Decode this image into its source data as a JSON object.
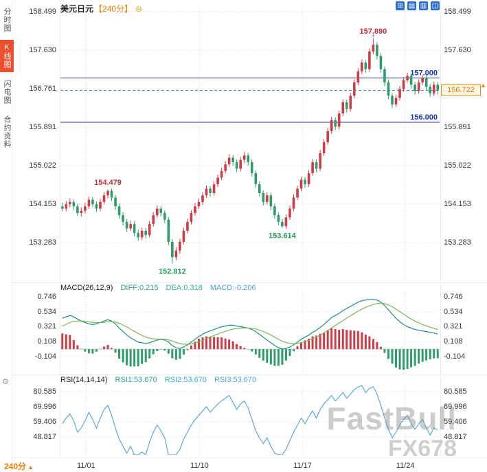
{
  "sidebar": {
    "items": [
      {
        "label": "分时图",
        "active": false
      },
      {
        "label": "K线图",
        "active": true
      },
      {
        "label": "闪电图",
        "active": false
      },
      {
        "label": "合约资料",
        "active": false
      }
    ]
  },
  "header": {
    "symbol": "美元日元",
    "period": "【240分】",
    "collapse_icon": "⊖"
  },
  "toolbar": {
    "icons": [
      {
        "name": "add-chart-icon",
        "glyph": "⊞"
      },
      {
        "name": "grid-layout-icon",
        "glyph": "▤"
      },
      {
        "name": "columns-layout-icon",
        "glyph": "▥"
      },
      {
        "name": "split-view-icon",
        "glyph": "◫"
      }
    ]
  },
  "icons": {
    "up_arrow": "▲",
    "gear": "⚙"
  },
  "footer": {
    "period_label": "240分"
  },
  "watermark": {
    "line1": "FastBull",
    "line2": "FX678"
  },
  "colors": {
    "up": "#ce3d45",
    "down": "#2e9c6b",
    "hline": "#1533b4",
    "current_line": "#2e86c1",
    "current_tag": "#f08c00",
    "annotation_red": "#c22f3e",
    "annotation_green": "#1f9a57",
    "macd_diff": "#1e8f85",
    "macd_dea": "#79b65a",
    "rsi_line": "#58aadd",
    "accent_orange": "#f07d00",
    "active_tab": "#ee4f2d",
    "icon_blue": "#2a6fd0",
    "grid": "#d9d9d9"
  },
  "chart_data": {
    "type": "candlestick",
    "symbol": "美元日元",
    "interval": "240分",
    "price_axis": [
      {
        "value": 158.499,
        "label": "158.499"
      },
      {
        "value": 157.63,
        "label": "157.630"
      },
      {
        "value": 156.761,
        "label": "156.761"
      },
      {
        "value": 155.891,
        "label": "155.891"
      },
      {
        "value": 155.022,
        "label": "155.022"
      },
      {
        "value": 154.153,
        "label": "154.153"
      },
      {
        "value": 153.283,
        "label": "153.283"
      }
    ],
    "price_range": [
      152.366,
      158.608
    ],
    "hlines": [
      {
        "value": 157.0,
        "label": "157.000"
      },
      {
        "value": 156.0,
        "label": "156.000"
      }
    ],
    "current_price": {
      "value": 156.722,
      "label": "156.722"
    },
    "annotations": [
      {
        "text": "157.890",
        "price": 157.89,
        "candle": 82,
        "placement": "above",
        "color": "#c22f3e",
        "marker": "+"
      },
      {
        "text": "154.479",
        "price": 154.479,
        "candle": 12,
        "placement": "above",
        "color": "#c22f3e"
      },
      {
        "text": "153.614",
        "price": 153.614,
        "candle": 58,
        "placement": "below",
        "color": "#1f9a57"
      },
      {
        "text": "152.812",
        "price": 152.812,
        "candle": 29,
        "placement": "below",
        "color": "#1f9a57"
      }
    ],
    "date_ticks": [
      {
        "label": "11/01",
        "pos": 0.067
      },
      {
        "label": "11/10",
        "pos": 0.366
      },
      {
        "label": "11/17",
        "pos": 0.638
      },
      {
        "label": "11/24",
        "pos": 0.909
      }
    ],
    "candles": [
      [
        154.1,
        154.18,
        153.98,
        154.05
      ],
      [
        154.05,
        154.22,
        153.99,
        154.15
      ],
      [
        154.15,
        154.28,
        154.08,
        154.2
      ],
      [
        154.2,
        154.26,
        154.02,
        154.1
      ],
      [
        154.1,
        154.16,
        153.88,
        153.95
      ],
      [
        153.95,
        154.08,
        153.87,
        154.0
      ],
      [
        154.0,
        154.18,
        153.94,
        154.1
      ],
      [
        154.1,
        154.32,
        154.04,
        154.25
      ],
      [
        154.25,
        154.31,
        154.08,
        154.15
      ],
      [
        154.15,
        154.21,
        153.97,
        154.05
      ],
      [
        154.05,
        154.27,
        153.99,
        154.2
      ],
      [
        154.2,
        154.42,
        154.14,
        154.35
      ],
      [
        154.35,
        154.479,
        154.28,
        154.45
      ],
      [
        154.45,
        154.5,
        154.22,
        154.3
      ],
      [
        154.3,
        154.36,
        154.02,
        154.1
      ],
      [
        154.1,
        154.16,
        153.82,
        153.9
      ],
      [
        153.9,
        153.97,
        153.67,
        153.75
      ],
      [
        153.75,
        153.81,
        153.52,
        153.6
      ],
      [
        153.6,
        153.78,
        153.54,
        153.7
      ],
      [
        153.7,
        153.76,
        153.42,
        153.5
      ],
      [
        153.5,
        153.57,
        153.32,
        153.4
      ],
      [
        153.4,
        153.62,
        153.34,
        153.55
      ],
      [
        153.55,
        153.61,
        153.37,
        153.45
      ],
      [
        153.45,
        153.77,
        153.39,
        153.7
      ],
      [
        153.7,
        153.97,
        153.64,
        153.9
      ],
      [
        153.9,
        154.12,
        153.84,
        154.05
      ],
      [
        154.05,
        154.11,
        153.87,
        153.95
      ],
      [
        153.95,
        154.01,
        153.72,
        153.8
      ],
      [
        153.8,
        153.86,
        153.22,
        153.3
      ],
      [
        153.3,
        153.36,
        152.812,
        152.95
      ],
      [
        152.95,
        153.18,
        152.88,
        153.1
      ],
      [
        153.1,
        153.37,
        153.03,
        153.3
      ],
      [
        153.3,
        153.62,
        153.24,
        153.55
      ],
      [
        153.55,
        153.82,
        153.49,
        153.75
      ],
      [
        153.75,
        154.02,
        153.69,
        153.95
      ],
      [
        153.95,
        154.17,
        153.89,
        154.1
      ],
      [
        154.1,
        154.28,
        154.04,
        154.2
      ],
      [
        154.2,
        154.42,
        154.13,
        154.35
      ],
      [
        154.35,
        154.57,
        154.29,
        154.5
      ],
      [
        154.5,
        154.56,
        154.32,
        154.4
      ],
      [
        154.4,
        154.67,
        154.34,
        154.6
      ],
      [
        154.6,
        154.82,
        154.54,
        154.75
      ],
      [
        154.75,
        154.97,
        154.69,
        154.9
      ],
      [
        154.9,
        155.12,
        154.84,
        155.05
      ],
      [
        155.05,
        155.28,
        154.99,
        155.2
      ],
      [
        155.2,
        155.26,
        155.02,
        155.1
      ],
      [
        155.1,
        155.16,
        154.87,
        154.95
      ],
      [
        154.95,
        155.22,
        154.89,
        155.15
      ],
      [
        155.15,
        155.33,
        155.08,
        155.25
      ],
      [
        155.25,
        155.31,
        155.02,
        155.1
      ],
      [
        155.1,
        155.16,
        154.77,
        154.85
      ],
      [
        154.85,
        154.91,
        154.52,
        154.6
      ],
      [
        154.6,
        154.66,
        154.32,
        154.4
      ],
      [
        154.4,
        154.46,
        154.12,
        154.2
      ],
      [
        154.2,
        154.42,
        154.14,
        154.35
      ],
      [
        154.35,
        154.41,
        154.02,
        154.1
      ],
      [
        154.1,
        154.16,
        153.82,
        153.9
      ],
      [
        153.9,
        153.96,
        153.67,
        153.75
      ],
      [
        153.75,
        153.81,
        153.614,
        153.65
      ],
      [
        153.65,
        153.92,
        153.59,
        153.85
      ],
      [
        153.85,
        154.12,
        153.79,
        154.05
      ],
      [
        154.05,
        154.37,
        153.99,
        154.3
      ],
      [
        154.3,
        154.57,
        154.24,
        154.5
      ],
      [
        154.5,
        154.77,
        154.44,
        154.7
      ],
      [
        154.7,
        154.76,
        154.52,
        154.6
      ],
      [
        154.6,
        154.92,
        154.54,
        154.85
      ],
      [
        154.85,
        155.17,
        154.79,
        155.1
      ],
      [
        155.1,
        155.16,
        154.87,
        154.95
      ],
      [
        154.95,
        155.37,
        154.89,
        155.3
      ],
      [
        155.3,
        155.62,
        155.24,
        155.55
      ],
      [
        155.55,
        155.87,
        155.49,
        155.8
      ],
      [
        155.8,
        156.12,
        155.74,
        156.05
      ],
      [
        156.05,
        156.11,
        155.82,
        155.9
      ],
      [
        155.9,
        156.27,
        155.84,
        156.2
      ],
      [
        156.2,
        156.52,
        156.14,
        156.45
      ],
      [
        156.45,
        156.51,
        156.22,
        156.3
      ],
      [
        156.3,
        156.67,
        156.24,
        156.6
      ],
      [
        156.6,
        156.97,
        156.54,
        156.9
      ],
      [
        156.9,
        157.22,
        156.84,
        157.15
      ],
      [
        157.15,
        157.42,
        157.09,
        157.35
      ],
      [
        157.35,
        157.41,
        157.12,
        157.2
      ],
      [
        157.2,
        157.67,
        157.14,
        157.6
      ],
      [
        157.6,
        157.89,
        157.54,
        157.75
      ],
      [
        157.75,
        157.81,
        157.42,
        157.5
      ],
      [
        157.5,
        157.56,
        157.12,
        157.2
      ],
      [
        157.2,
        157.26,
        156.82,
        156.9
      ],
      [
        156.9,
        156.96,
        156.52,
        156.6
      ],
      [
        156.6,
        156.66,
        156.32,
        156.4
      ],
      [
        156.4,
        156.62,
        156.34,
        156.55
      ],
      [
        156.55,
        156.82,
        156.49,
        156.75
      ],
      [
        156.75,
        157.02,
        156.69,
        156.95
      ],
      [
        156.95,
        157.12,
        156.89,
        157.05
      ],
      [
        157.05,
        157.11,
        156.77,
        156.85
      ],
      [
        156.85,
        156.91,
        156.62,
        156.7
      ],
      [
        156.7,
        156.97,
        156.64,
        156.9
      ],
      [
        156.9,
        157.07,
        156.84,
        157.0
      ],
      [
        157.0,
        157.06,
        156.72,
        156.8
      ],
      [
        156.8,
        156.86,
        156.57,
        156.65
      ],
      [
        156.65,
        156.92,
        156.59,
        156.85
      ],
      [
        156.85,
        156.91,
        156.62,
        156.722
      ]
    ],
    "macd": {
      "title": "MACD(26,12,9)",
      "diff_label": "DIFF:0.215",
      "dea_label": "DEA:0.318",
      "macd_label": "MACD:-0.206",
      "ticks": [
        {
          "value": 0.746,
          "label": "0.746"
        },
        {
          "value": 0.534,
          "label": "0.534"
        },
        {
          "value": 0.321,
          "label": "0.321"
        },
        {
          "value": 0.108,
          "label": "0.108"
        },
        {
          "value": -0.104,
          "label": "-0.104"
        }
      ],
      "range": [
        -0.342,
        0.815
      ],
      "dea_seed": 0.3,
      "diff": [
        0.44,
        0.46,
        0.48,
        0.46,
        0.43,
        0.4,
        0.38,
        0.36,
        0.35,
        0.36,
        0.38,
        0.4,
        0.42,
        0.4,
        0.36,
        0.3,
        0.25,
        0.2,
        0.16,
        0.13,
        0.1,
        0.09,
        0.08,
        0.09,
        0.11,
        0.13,
        0.14,
        0.13,
        0.1,
        0.05,
        0.02,
        0.01,
        0.03,
        0.06,
        0.1,
        0.14,
        0.18,
        0.21,
        0.24,
        0.26,
        0.28,
        0.3,
        0.32,
        0.33,
        0.34,
        0.34,
        0.33,
        0.32,
        0.31,
        0.3,
        0.28,
        0.25,
        0.21,
        0.17,
        0.13,
        0.09,
        0.05,
        0.02,
        0.0,
        0.01,
        0.03,
        0.06,
        0.1,
        0.14,
        0.17,
        0.2,
        0.24,
        0.27,
        0.31,
        0.35,
        0.4,
        0.45,
        0.48,
        0.51,
        0.55,
        0.58,
        0.61,
        0.64,
        0.67,
        0.69,
        0.7,
        0.71,
        0.71,
        0.7,
        0.67,
        0.62,
        0.56,
        0.5,
        0.44,
        0.39,
        0.35,
        0.32,
        0.3,
        0.28,
        0.27,
        0.26,
        0.25,
        0.24,
        0.23,
        0.215
      ]
    },
    "rsi": {
      "title": "RSI(14,14,14)",
      "labels": [
        "RSI1:53.670",
        "RSI2:53.670",
        "RSI3:53.670"
      ],
      "ticks": [
        {
          "value": 80.585,
          "label": "80.585"
        },
        {
          "value": 69.996,
          "label": "69.996"
        },
        {
          "value": 59.406,
          "label": "59.406"
        },
        {
          "value": 48.817,
          "label": "48.817"
        }
      ],
      "range": [
        36,
        86
      ],
      "values": [
        58,
        62,
        65,
        60,
        52,
        55,
        60,
        66,
        61,
        55,
        62,
        68,
        71,
        64,
        55,
        47,
        42,
        37,
        42,
        35,
        32,
        38,
        35,
        45,
        52,
        57,
        53,
        48,
        33,
        26,
        31,
        40,
        47,
        52,
        57,
        61,
        64,
        67,
        70,
        66,
        69,
        72,
        74,
        76,
        78,
        73,
        68,
        72,
        74,
        69,
        61,
        53,
        48,
        44,
        48,
        42,
        37,
        34,
        32,
        40,
        46,
        52,
        57,
        62,
        58,
        63,
        67,
        62,
        68,
        72,
        75,
        78,
        74,
        77,
        80,
        76,
        79,
        82,
        84,
        85,
        80,
        83,
        84,
        79,
        71,
        62,
        54,
        48,
        52,
        57,
        61,
        64,
        58,
        54,
        58,
        61,
        55,
        50,
        55,
        53.67
      ]
    }
  }
}
